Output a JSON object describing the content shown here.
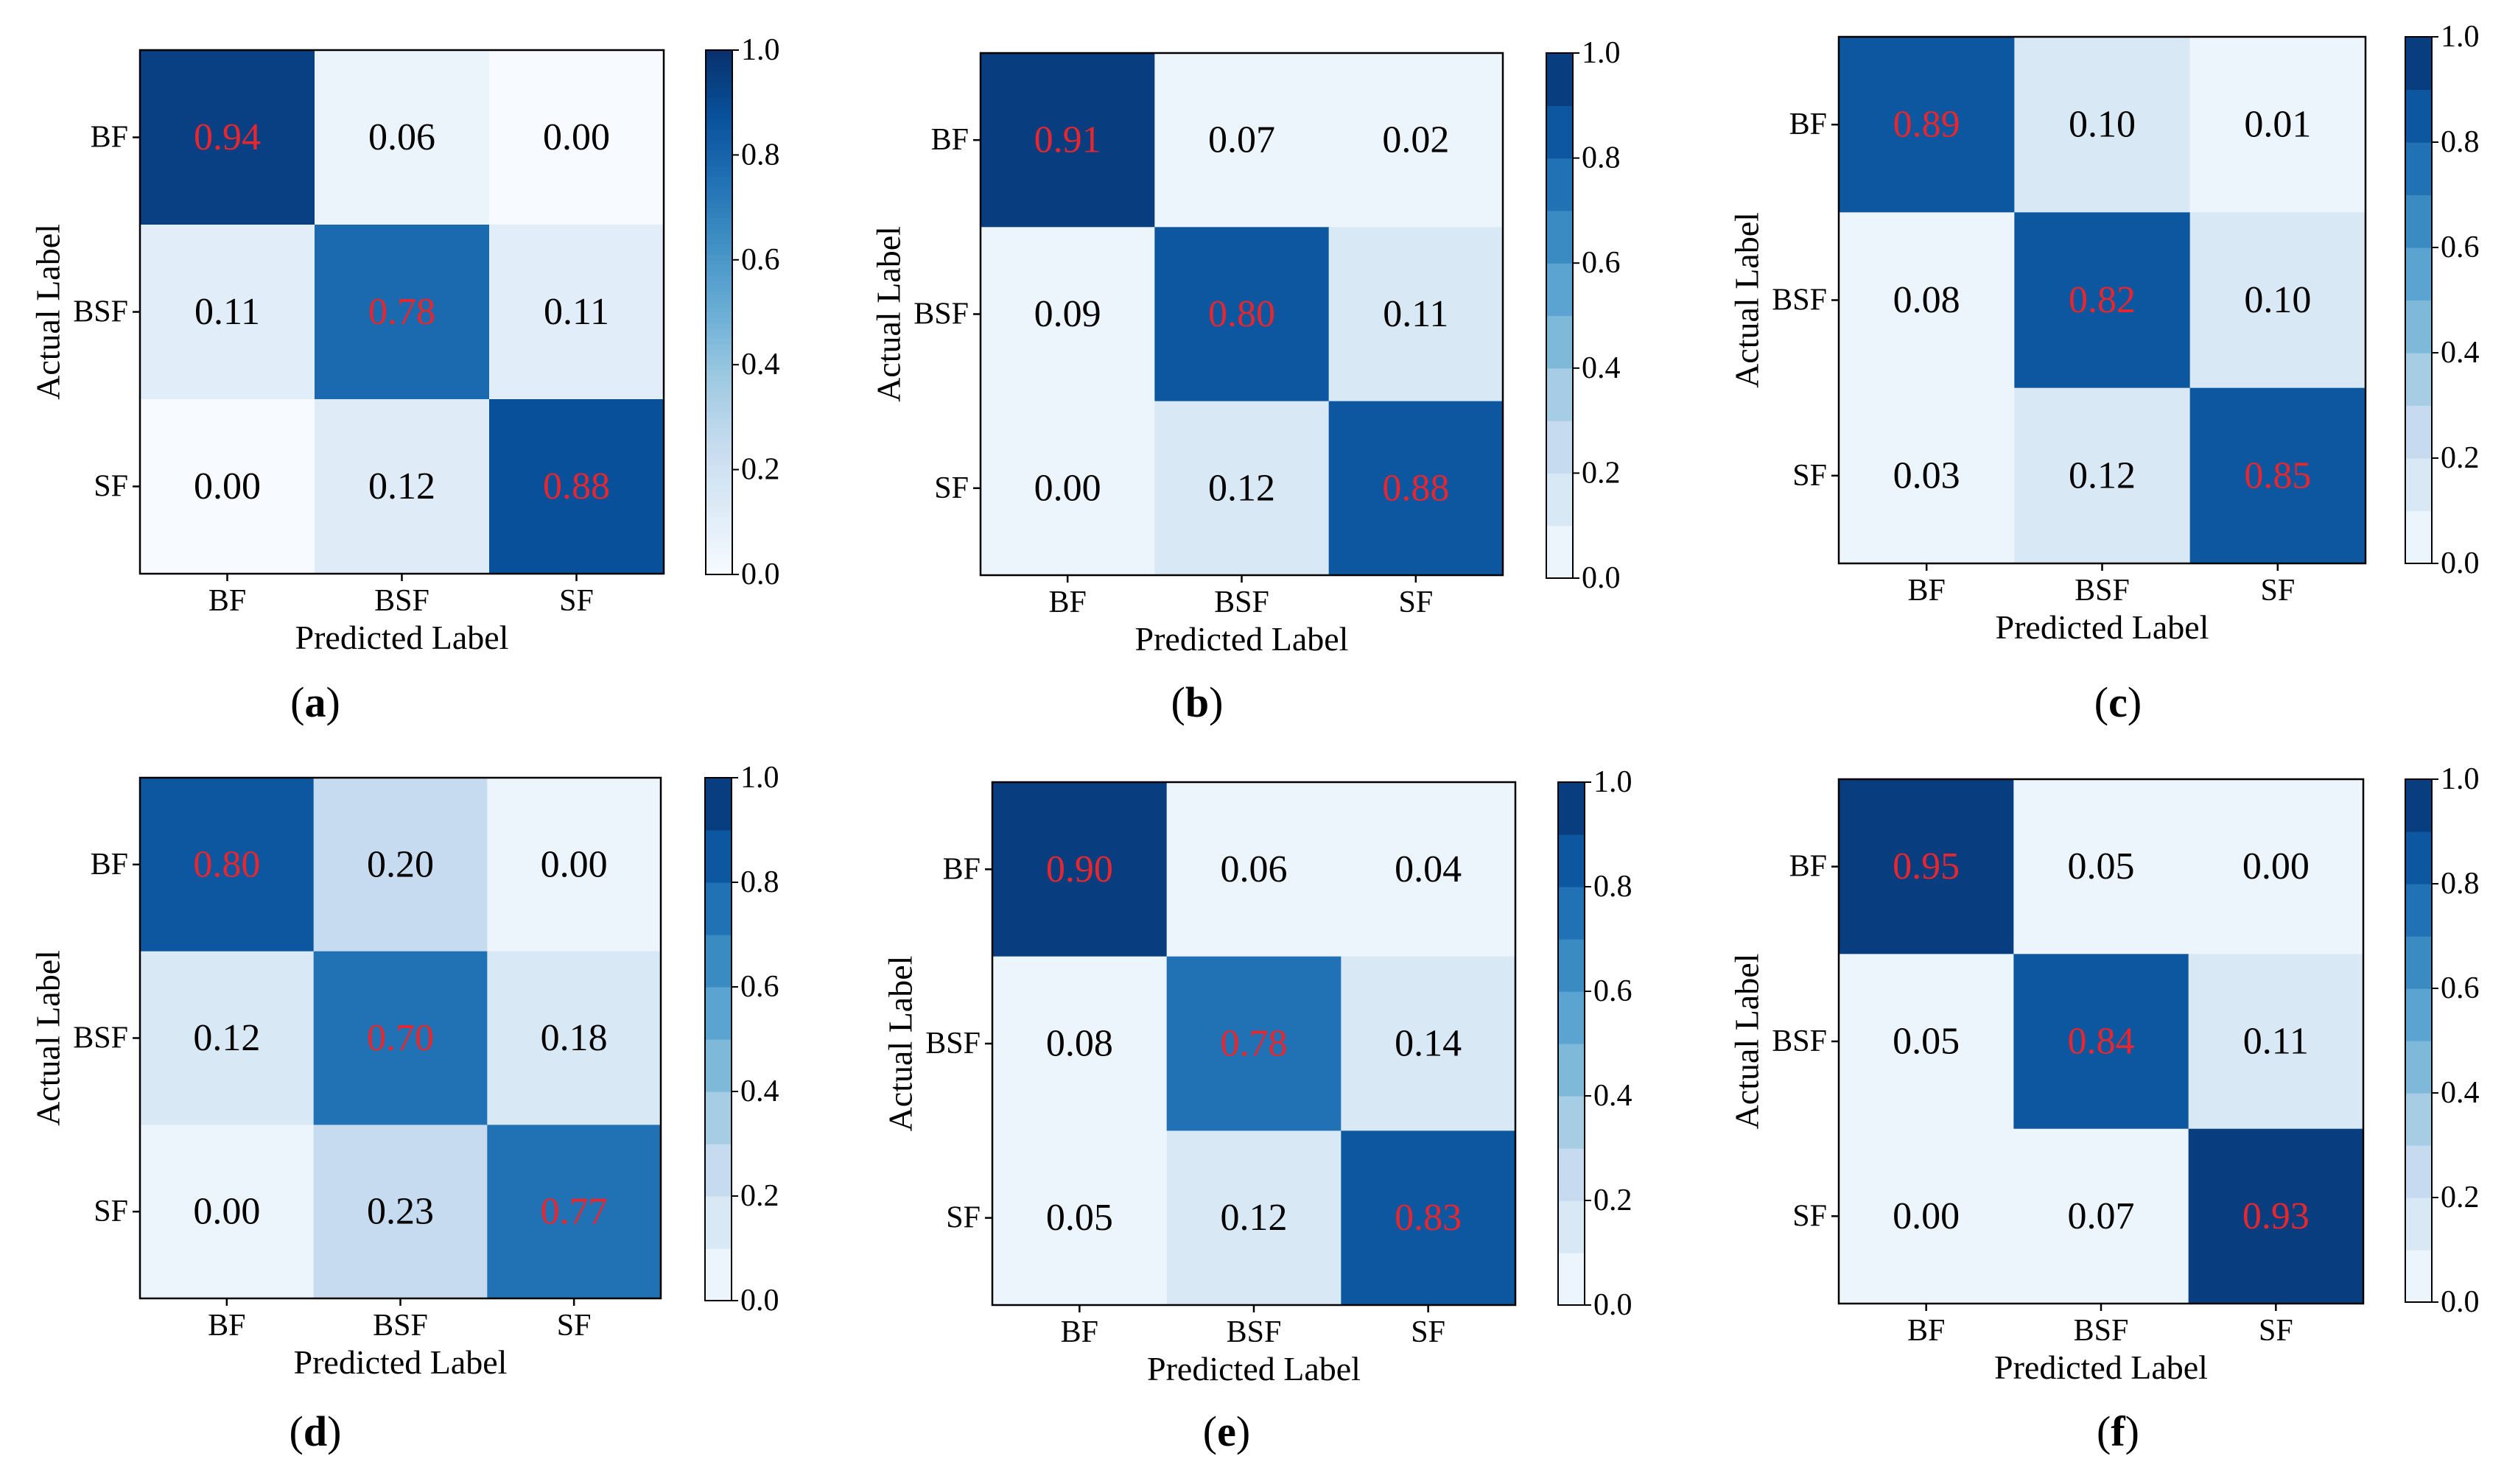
{
  "figure": {
    "colors": {
      "cmap": [
        "#f7fbff",
        "#deebf7",
        "#c6dbef",
        "#9ecae1",
        "#6baed6",
        "#4292c6",
        "#2171b5",
        "#08519c",
        "#08306b"
      ],
      "diag_text": "#e8262d",
      "off_text": "#000000",
      "frame": "#000000"
    }
  },
  "chart_data": [
    {
      "type": "heatmap",
      "panel_label": "(a)",
      "caption_letter": "a",
      "xlabel": "Predicted Label",
      "ylabel": "Actual Label",
      "x_categories": [
        "BF",
        "BSF",
        "SF"
      ],
      "y_categories": [
        "BF",
        "BSF",
        "SF"
      ],
      "matrix": [
        [
          0.94,
          0.06,
          0.0
        ],
        [
          0.11,
          0.78,
          0.11
        ],
        [
          0.0,
          0.12,
          0.88
        ]
      ],
      "matrix_labels": [
        [
          "0.94",
          "0.06",
          "0.00"
        ],
        [
          "0.11",
          "0.78",
          "0.11"
        ],
        [
          "0.00",
          "0.12",
          "0.88"
        ]
      ],
      "colorbar": {
        "range": [
          0.0,
          1.0
        ],
        "ticks": [
          "0.0",
          "0.2",
          "0.4",
          "0.6",
          "0.8",
          "1.0"
        ],
        "discrete_bins": 0
      }
    },
    {
      "type": "heatmap",
      "panel_label": "(b)",
      "caption_letter": "b",
      "xlabel": "Predicted Label",
      "ylabel": "Actual Label",
      "x_categories": [
        "BF",
        "BSF",
        "SF"
      ],
      "y_categories": [
        "BF",
        "BSF",
        "SF"
      ],
      "matrix": [
        [
          0.91,
          0.07,
          0.02
        ],
        [
          0.09,
          0.8,
          0.11
        ],
        [
          0.0,
          0.12,
          0.88
        ]
      ],
      "matrix_labels": [
        [
          "0.91",
          "0.07",
          "0.02"
        ],
        [
          "0.09",
          "0.80",
          "0.11"
        ],
        [
          "0.00",
          "0.12",
          "0.88"
        ]
      ],
      "colorbar": {
        "range": [
          0.0,
          1.0
        ],
        "ticks": [
          "0.0",
          "0.2",
          "0.4",
          "0.6",
          "0.8",
          "1.0"
        ],
        "discrete_bins": 10
      }
    },
    {
      "type": "heatmap",
      "panel_label": "(c)",
      "caption_letter": "c",
      "xlabel": "Predicted Label",
      "ylabel": "Actual Label",
      "x_categories": [
        "BF",
        "BSF",
        "SF"
      ],
      "y_categories": [
        "BF",
        "BSF",
        "SF"
      ],
      "matrix": [
        [
          0.89,
          0.1,
          0.01
        ],
        [
          0.08,
          0.82,
          0.1
        ],
        [
          0.03,
          0.12,
          0.85
        ]
      ],
      "matrix_labels": [
        [
          "0.89",
          "0.10",
          "0.01"
        ],
        [
          "0.08",
          "0.82",
          "0.10"
        ],
        [
          "0.03",
          "0.12",
          "0.85"
        ]
      ],
      "colorbar": {
        "range": [
          0.0,
          1.0
        ],
        "ticks": [
          "0.0",
          "0.2",
          "0.4",
          "0.6",
          "0.8",
          "1.0"
        ],
        "discrete_bins": 10
      }
    },
    {
      "type": "heatmap",
      "panel_label": "(d)",
      "caption_letter": "d",
      "xlabel": "Predicted Label",
      "ylabel": "Actual Label",
      "x_categories": [
        "BF",
        "BSF",
        "SF"
      ],
      "y_categories": [
        "BF",
        "BSF",
        "SF"
      ],
      "matrix": [
        [
          0.8,
          0.2,
          0.0
        ],
        [
          0.12,
          0.7,
          0.18
        ],
        [
          0.0,
          0.23,
          0.77
        ]
      ],
      "matrix_labels": [
        [
          "0.80",
          "0.20",
          "0.00"
        ],
        [
          "0.12",
          "0.70",
          "0.18"
        ],
        [
          "0.00",
          "0.23",
          "0.77"
        ]
      ],
      "colorbar": {
        "range": [
          0.0,
          1.0
        ],
        "ticks": [
          "0.0",
          "0.2",
          "0.4",
          "0.6",
          "0.8",
          "1.0"
        ],
        "discrete_bins": 10
      }
    },
    {
      "type": "heatmap",
      "panel_label": "(e)",
      "caption_letter": "e",
      "xlabel": "Predicted Label",
      "ylabel": "Actual Label",
      "x_categories": [
        "BF",
        "BSF",
        "SF"
      ],
      "y_categories": [
        "BF",
        "BSF",
        "SF"
      ],
      "matrix": [
        [
          0.9,
          0.06,
          0.04
        ],
        [
          0.08,
          0.78,
          0.14
        ],
        [
          0.05,
          0.12,
          0.83
        ]
      ],
      "matrix_labels": [
        [
          "0.90",
          "0.06",
          "0.04"
        ],
        [
          "0.08",
          "0.78",
          "0.14"
        ],
        [
          "0.05",
          "0.12",
          "0.83"
        ]
      ],
      "colorbar": {
        "range": [
          0.0,
          1.0
        ],
        "ticks": [
          "0.0",
          "0.2",
          "0.4",
          "0.6",
          "0.8",
          "1.0"
        ],
        "discrete_bins": 10
      }
    },
    {
      "type": "heatmap",
      "panel_label": "(f)",
      "caption_letter": "f",
      "xlabel": "Predicted Label",
      "ylabel": "Actual Label",
      "x_categories": [
        "BF",
        "BSF",
        "SF"
      ],
      "y_categories": [
        "BF",
        "BSF",
        "SF"
      ],
      "matrix": [
        [
          0.95,
          0.05,
          0.0
        ],
        [
          0.05,
          0.84,
          0.11
        ],
        [
          0.0,
          0.07,
          0.93
        ]
      ],
      "matrix_labels": [
        [
          "0.95",
          "0.05",
          "0.00"
        ],
        [
          "0.05",
          "0.84",
          "0.11"
        ],
        [
          "0.00",
          "0.07",
          "0.93"
        ]
      ],
      "colorbar": {
        "range": [
          0.0,
          1.0
        ],
        "ticks": [
          "0.0",
          "0.2",
          "0.4",
          "0.6",
          "0.8",
          "1.0"
        ],
        "discrete_bins": 10
      }
    }
  ]
}
